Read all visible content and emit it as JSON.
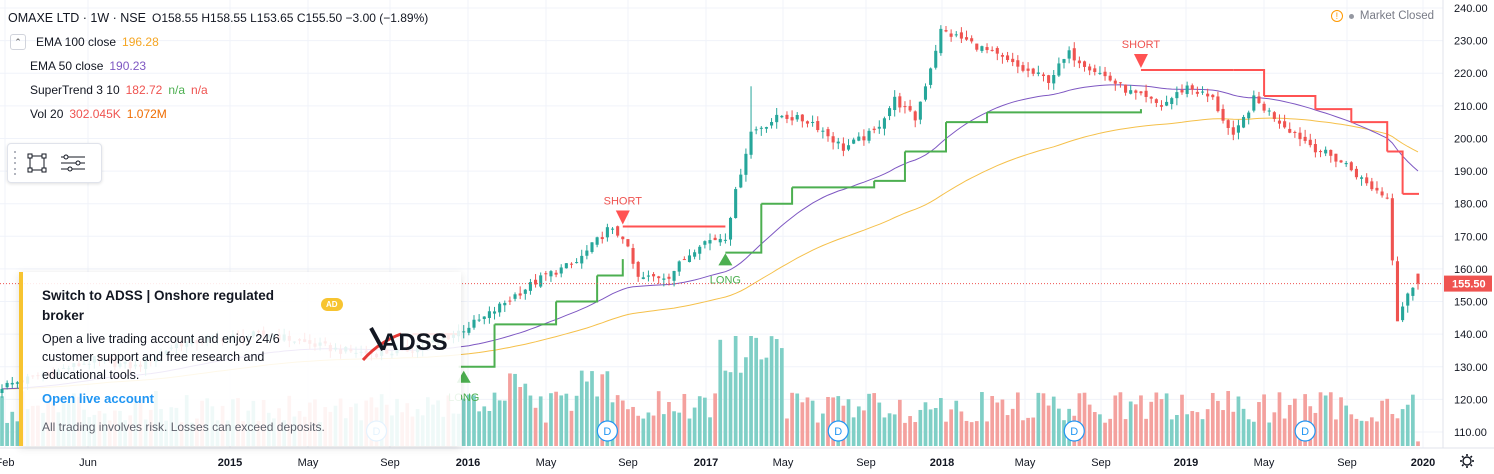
{
  "header": {
    "symbol": "OMAXE LTD · 1W · NSE",
    "ohlc": {
      "o_label": "O",
      "o": "158.55",
      "h_label": "H",
      "h": "158.55",
      "l_label": "L",
      "l": "153.65",
      "c_label": "C",
      "c": "155.50",
      "change": "−3.00 (−1.89%)"
    }
  },
  "indicators": [
    {
      "name": "EMA 100 close",
      "values": [
        "196.28"
      ],
      "colors": [
        "#f5a623"
      ]
    },
    {
      "name": "EMA 50 close",
      "values": [
        "190.23"
      ],
      "colors": [
        "#7e57c2"
      ]
    },
    {
      "name": "SuperTrend 3 10",
      "values": [
        "182.72",
        "n/a",
        "n/a"
      ],
      "colors": [
        "#ef5350",
        "#4caf50",
        "#ef5350"
      ]
    },
    {
      "name": "Vol 20",
      "values": [
        "302.045K",
        "1.072M"
      ],
      "colors": [
        "#ef5350",
        "#ef6c00"
      ]
    }
  ],
  "market_status": "Market Closed",
  "ad": {
    "title": "Switch to ADSS | Onshore regulated broker",
    "badge": "AD",
    "body": "Open a live trading account and enjoy 24/6 customer support and free research and educational tools.",
    "link": "Open live account",
    "disclaimer": "All trading involves risk. Losses can exceed deposits.",
    "logo_text": "ADSS"
  },
  "colors": {
    "up": "#26a69a",
    "down": "#ef5350",
    "vol_up": "#7fcfc6",
    "vol_down": "#f4a19e",
    "ema100": "#f5c04a",
    "ema50": "#7e57c2",
    "st_up": "#4caf50",
    "st_down": "#ff5252",
    "price_label": "#ef5350"
  },
  "chart_data": {
    "type": "candlestick",
    "ylim": [
      105,
      241
    ],
    "y_ticks": [
      110,
      120,
      130,
      140,
      150,
      160,
      170,
      180,
      190,
      200,
      210,
      220,
      230,
      240
    ],
    "y_tick_labels": [
      "110.00",
      "120.00",
      "130.00",
      "140.00",
      "150.00",
      "160.00",
      "170.00",
      "180.00",
      "190.00",
      "200.00",
      "210.00",
      "220.00",
      "230.00",
      "240.00"
    ],
    "x_labels": [
      "Feb",
      "Jun",
      "2015",
      "May",
      "Sep",
      "2016",
      "May",
      "Sep",
      "2017",
      "May",
      "Sep",
      "2018",
      "May",
      "Sep",
      "2019",
      "May",
      "Sep",
      "2020"
    ],
    "x_label_bold": [
      "2015",
      "2016",
      "2017",
      "2018",
      "2019",
      "2020"
    ],
    "last_price": "155.50",
    "price_anchors": [
      {
        "w": 0,
        "c": 124
      },
      {
        "w": 9,
        "c": 128
      },
      {
        "w": 18,
        "c": 132
      },
      {
        "w": 26,
        "c": 130
      },
      {
        "w": 34,
        "c": 137
      },
      {
        "w": 44,
        "c": 139
      },
      {
        "w": 52,
        "c": 140
      },
      {
        "w": 60,
        "c": 137
      },
      {
        "w": 66,
        "c": 135
      },
      {
        "w": 72,
        "c": 134
      },
      {
        "w": 78,
        "c": 135
      },
      {
        "w": 82,
        "c": 136
      },
      {
        "w": 88,
        "c": 140
      },
      {
        "w": 94,
        "c": 145
      },
      {
        "w": 100,
        "c": 152
      },
      {
        "w": 106,
        "c": 158
      },
      {
        "w": 112,
        "c": 162
      },
      {
        "w": 118,
        "c": 172
      },
      {
        "w": 121,
        "c": 170
      },
      {
        "w": 124,
        "c": 157
      },
      {
        "w": 130,
        "c": 158
      },
      {
        "w": 136,
        "c": 168
      },
      {
        "w": 141,
        "c": 170
      },
      {
        "w": 144,
        "c": 190
      },
      {
        "w": 146,
        "c": 202
      },
      {
        "w": 152,
        "c": 207
      },
      {
        "w": 158,
        "c": 205
      },
      {
        "w": 164,
        "c": 197
      },
      {
        "w": 170,
        "c": 202
      },
      {
        "w": 174,
        "c": 212
      },
      {
        "w": 178,
        "c": 206
      },
      {
        "w": 181,
        "c": 222
      },
      {
        "w": 183,
        "c": 233
      },
      {
        "w": 188,
        "c": 230
      },
      {
        "w": 193,
        "c": 226
      },
      {
        "w": 199,
        "c": 221
      },
      {
        "w": 204,
        "c": 218
      },
      {
        "w": 208,
        "c": 226
      },
      {
        "w": 214,
        "c": 220
      },
      {
        "w": 220,
        "c": 214
      },
      {
        "w": 226,
        "c": 210
      },
      {
        "w": 231,
        "c": 216
      },
      {
        "w": 236,
        "c": 212
      },
      {
        "w": 240,
        "c": 200
      },
      {
        "w": 244,
        "c": 212
      },
      {
        "w": 250,
        "c": 204
      },
      {
        "w": 256,
        "c": 197
      },
      {
        "w": 262,
        "c": 192
      },
      {
        "w": 266,
        "c": 186
      },
      {
        "w": 270,
        "c": 182
      },
      {
        "w": 272,
        "c": 145
      },
      {
        "w": 274,
        "c": 153
      },
      {
        "w": 276,
        "c": 155.5
      }
    ],
    "supertrend": [
      {
        "w": 80,
        "v": 140,
        "dir": "short"
      },
      {
        "w": 89,
        "v": 140,
        "dir": "short"
      },
      {
        "w": 89,
        "v": 130,
        "dir": "long"
      },
      {
        "w": 96,
        "v": 143,
        "dir": "long"
      },
      {
        "w": 108,
        "v": 150,
        "dir": "long"
      },
      {
        "w": 116,
        "v": 158,
        "dir": "long"
      },
      {
        "w": 121,
        "v": 163,
        "dir": "long"
      },
      {
        "w": 121,
        "v": 173,
        "dir": "short"
      },
      {
        "w": 141,
        "v": 173,
        "dir": "short"
      },
      {
        "w": 141,
        "v": 165,
        "dir": "long"
      },
      {
        "w": 148,
        "v": 180,
        "dir": "long"
      },
      {
        "w": 154,
        "v": 185,
        "dir": "long"
      },
      {
        "w": 170,
        "v": 187,
        "dir": "long"
      },
      {
        "w": 176,
        "v": 196,
        "dir": "long"
      },
      {
        "w": 184,
        "v": 205,
        "dir": "long"
      },
      {
        "w": 192,
        "v": 208,
        "dir": "long"
      },
      {
        "w": 222,
        "v": 209,
        "dir": "long"
      },
      {
        "w": 222,
        "v": 221,
        "dir": "short"
      },
      {
        "w": 240,
        "v": 221,
        "dir": "short"
      },
      {
        "w": 246,
        "v": 213,
        "dir": "short"
      },
      {
        "w": 256,
        "v": 209,
        "dir": "short"
      },
      {
        "w": 263,
        "v": 205,
        "dir": "short"
      },
      {
        "w": 270,
        "v": 196,
        "dir": "short"
      },
      {
        "w": 273,
        "v": 183,
        "dir": "short"
      },
      {
        "w": 276,
        "v": 182.7,
        "dir": "short"
      }
    ],
    "signals": [
      {
        "w": 90,
        "type": "LONG",
        "price": 130
      },
      {
        "w": 121,
        "type": "SHORT",
        "price": 173
      },
      {
        "w": 141,
        "type": "LONG",
        "price": 166
      },
      {
        "w": 222,
        "type": "SHORT",
        "price": 221
      }
    ],
    "dividend_markers": {
      "label": "D",
      "weeks": [
        73,
        118,
        163,
        209,
        254
      ]
    }
  }
}
